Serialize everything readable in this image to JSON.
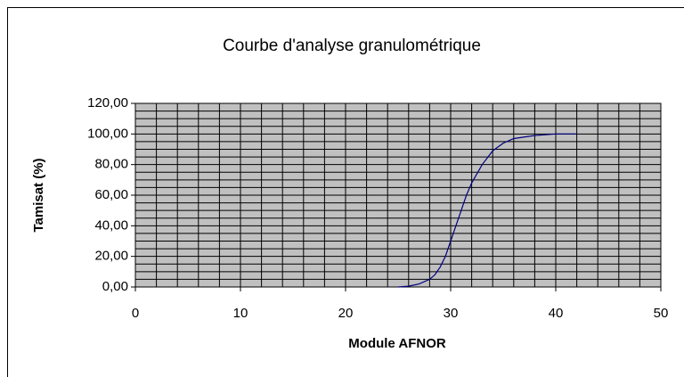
{
  "chart_data": {
    "type": "line",
    "title": "Courbe d'analyse granulométrique",
    "x_label": "Module AFNOR",
    "y_label": "Tamisat (%)",
    "series": [
      {
        "name": "Tamisat",
        "color": "#000080",
        "x": [
          25,
          26,
          27,
          28,
          28.5,
          29,
          29.5,
          30,
          30.5,
          31,
          31.5,
          32,
          33,
          34,
          35,
          36,
          37,
          38,
          40,
          42
        ],
        "values": [
          0,
          0.5,
          2,
          5,
          8,
          13,
          20,
          30,
          40,
          50,
          60,
          68,
          80,
          89,
          94,
          97,
          98,
          99,
          100,
          100
        ]
      }
    ],
    "xlim": [
      0,
      50
    ],
    "xticks": [
      0,
      10,
      20,
      30,
      40,
      50
    ],
    "ylim": [
      0,
      120
    ],
    "yticks": [
      {
        "value": 0,
        "label": "0,00"
      },
      {
        "value": 20,
        "label": "20,00"
      },
      {
        "value": 40,
        "label": "40,00"
      },
      {
        "value": 60,
        "label": "60,00"
      },
      {
        "value": 80,
        "label": "80,00"
      },
      {
        "value": 100,
        "label": "100,00"
      },
      {
        "value": 120,
        "label": "120,00"
      }
    ],
    "grid": true,
    "plot_background": "#c0c0c0"
  }
}
